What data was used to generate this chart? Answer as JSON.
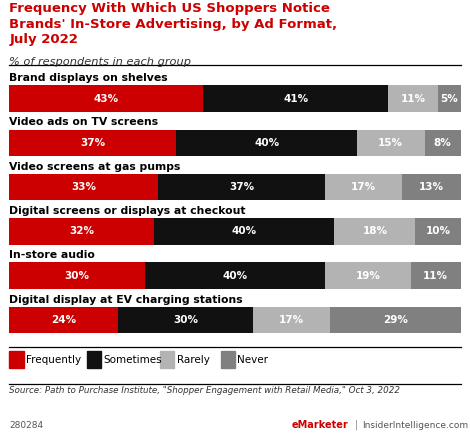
{
  "title": "Frequency With Which US Shoppers Notice\nBrands' In-Store Advertising, by Ad Format,\nJuly 2022",
  "subtitle": "% of respondents in each group",
  "categories": [
    "Brand displays on shelves",
    "Video ads on TV screens",
    "Video screens at gas pumps",
    "Digital screens or displays at checkout",
    "In-store audio",
    "Digital display at EV charging stations"
  ],
  "segments": [
    "Frequently",
    "Sometimes",
    "Rarely",
    "Never"
  ],
  "colors": [
    "#cc0000",
    "#111111",
    "#b3b3b3",
    "#808080"
  ],
  "data": [
    [
      43,
      41,
      11,
      5
    ],
    [
      37,
      40,
      15,
      8
    ],
    [
      33,
      37,
      17,
      13
    ],
    [
      32,
      40,
      18,
      10
    ],
    [
      30,
      40,
      19,
      11
    ],
    [
      24,
      30,
      17,
      29
    ]
  ],
  "source": "Source: Path to Purchase Institute, \"Shopper Engagement with Retail Media,\" Oct 3, 2022",
  "chart_id": "280284",
  "branding_left": "eMarketer",
  "branding_right": "InsiderIntelligence.com",
  "background_color": "#ffffff",
  "title_color": "#cc0000",
  "bar_height": 0.6
}
